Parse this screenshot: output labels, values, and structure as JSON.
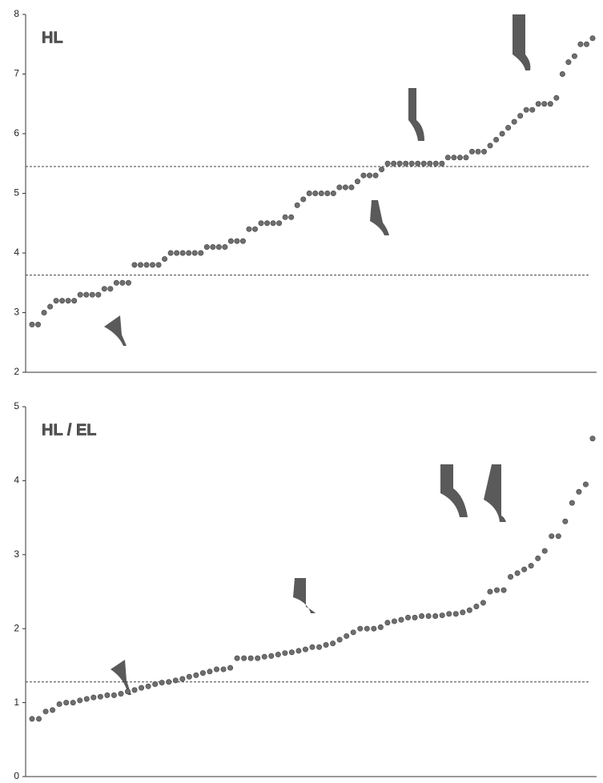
{
  "chart_data": [
    {
      "type": "dot",
      "title": "HL",
      "color": "#6e6e6e",
      "values": [
        2.8,
        2.8,
        3.0,
        3.1,
        3.2,
        3.2,
        3.2,
        3.2,
        3.3,
        3.3,
        3.3,
        3.3,
        3.4,
        3.4,
        3.5,
        3.5,
        3.5,
        3.8,
        3.8,
        3.8,
        3.8,
        3.8,
        3.9,
        4.0,
        4.0,
        4.0,
        4.0,
        4.0,
        4.0,
        4.1,
        4.1,
        4.1,
        4.1,
        4.2,
        4.2,
        4.2,
        4.4,
        4.4,
        4.5,
        4.5,
        4.5,
        4.5,
        4.6,
        4.6,
        4.8,
        4.9,
        5.0,
        5.0,
        5.0,
        5.0,
        5.0,
        5.1,
        5.1,
        5.1,
        5.2,
        5.3,
        5.3,
        5.3,
        5.4,
        5.5,
        5.5,
        5.5,
        5.5,
        5.5,
        5.5,
        5.5,
        5.5,
        5.5,
        5.5,
        5.6,
        5.6,
        5.6,
        5.6,
        5.7,
        5.7,
        5.7,
        5.8,
        5.9,
        6.0,
        6.1,
        6.2,
        6.3,
        6.4,
        6.4,
        6.5,
        6.5,
        6.5,
        6.6,
        7.0,
        7.2,
        7.3,
        7.5,
        7.5,
        7.6
      ],
      "reference_lines": [
        5.45,
        3.63
      ],
      "ylim": [
        2,
        8
      ],
      "yticks": [
        2,
        3,
        4,
        5,
        6,
        7,
        8
      ]
    },
    {
      "type": "dot",
      "title": "HL / EL",
      "color": "#6e6e6e",
      "values": [
        0.78,
        0.78,
        0.88,
        0.9,
        0.98,
        1.0,
        1.0,
        1.03,
        1.05,
        1.07,
        1.08,
        1.1,
        1.1,
        1.12,
        1.15,
        1.17,
        1.2,
        1.22,
        1.25,
        1.27,
        1.28,
        1.3,
        1.32,
        1.35,
        1.37,
        1.4,
        1.42,
        1.45,
        1.45,
        1.47,
        1.6,
        1.6,
        1.6,
        1.6,
        1.62,
        1.63,
        1.65,
        1.67,
        1.68,
        1.7,
        1.72,
        1.75,
        1.75,
        1.78,
        1.8,
        1.85,
        1.9,
        1.95,
        2.0,
        2.0,
        2.0,
        2.02,
        2.08,
        2.1,
        2.12,
        2.15,
        2.15,
        2.17,
        2.17,
        2.17,
        2.18,
        2.2,
        2.2,
        2.22,
        2.25,
        2.3,
        2.35,
        2.5,
        2.52,
        2.52,
        2.7,
        2.75,
        2.8,
        2.85,
        2.95,
        3.05,
        3.25,
        3.25,
        3.45,
        3.7,
        3.85,
        3.95,
        4.57
      ],
      "reference_lines": [
        1.28
      ],
      "ylim": [
        0,
        5
      ],
      "yticks": [
        0,
        1,
        2,
        3,
        4,
        5
      ]
    }
  ]
}
